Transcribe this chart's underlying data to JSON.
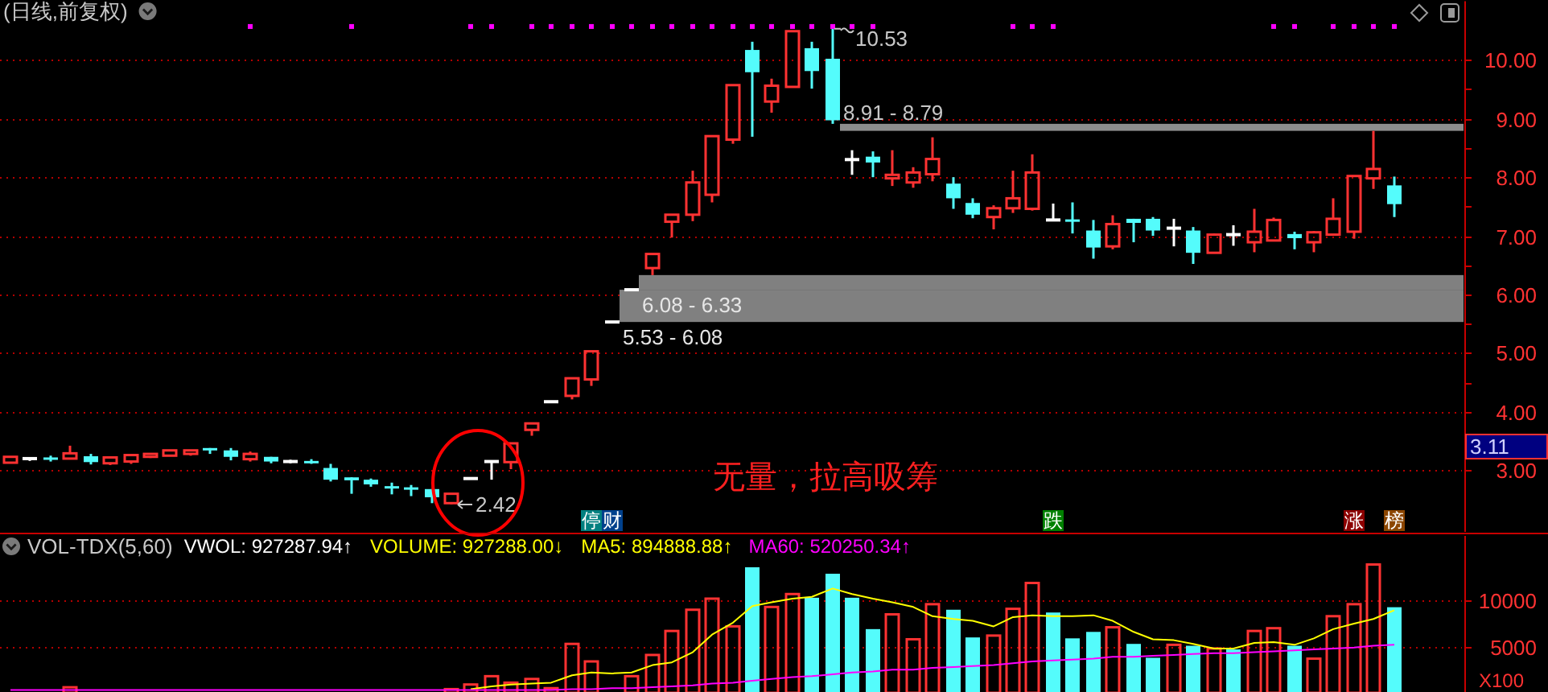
{
  "chart_data": [
    {
      "type": "candlestick",
      "title": "(日线,前复权)",
      "tick_labels": "y",
      "grid": "y",
      "marker": "square",
      "categories": [
        null,
        null,
        null,
        null,
        null,
        null,
        null,
        null,
        null,
        null,
        null,
        null,
        null,
        null,
        null,
        null,
        null,
        null,
        null,
        null,
        null,
        null,
        null,
        null,
        null,
        null,
        null,
        null,
        null,
        null,
        null,
        null,
        null,
        null,
        null,
        null,
        null,
        null,
        null,
        null,
        null,
        null,
        null,
        null,
        null,
        null,
        null,
        null,
        null,
        null,
        null,
        null,
        null,
        null,
        null,
        null,
        null,
        null,
        null,
        null,
        null,
        null,
        null,
        null,
        null,
        null,
        null,
        null,
        null,
        null,
        null,
        null,
        null
      ],
      "ohlc": [
        [
          3.13,
          3.24,
          3.12,
          3.23
        ],
        [
          3.2,
          3.21,
          3.16,
          3.2
        ],
        [
          3.22,
          3.25,
          3.15,
          3.2
        ],
        [
          3.2,
          3.42,
          3.19,
          3.29
        ],
        [
          3.24,
          3.28,
          3.1,
          3.14
        ],
        [
          3.12,
          3.23,
          3.09,
          3.22
        ],
        [
          3.15,
          3.27,
          3.11,
          3.26
        ],
        [
          3.23,
          3.29,
          3.21,
          3.28
        ],
        [
          3.25,
          3.35,
          3.24,
          3.34
        ],
        [
          3.28,
          3.35,
          3.25,
          3.34
        ],
        [
          3.38,
          3.38,
          3.28,
          3.35
        ],
        [
          3.34,
          3.38,
          3.17,
          3.23
        ],
        [
          3.19,
          3.32,
          3.15,
          3.28
        ],
        [
          3.23,
          3.23,
          3.12,
          3.15
        ],
        [
          3.15,
          3.18,
          3.12,
          3.15
        ],
        [
          3.16,
          3.19,
          3.11,
          3.15
        ],
        [
          3.04,
          3.11,
          2.81,
          2.84
        ],
        [
          2.88,
          2.88,
          2.6,
          2.83
        ],
        [
          2.84,
          2.86,
          2.72,
          2.76
        ],
        [
          2.73,
          2.79,
          2.59,
          2.71
        ],
        [
          2.71,
          2.75,
          2.56,
          2.69
        ],
        [
          2.68,
          2.68,
          2.44,
          2.54
        ],
        [
          2.44,
          2.6,
          2.42,
          2.6
        ],
        [
          2.86,
          2.86,
          2.86,
          2.86
        ],
        [
          3.15,
          3.15,
          2.84,
          3.15
        ],
        [
          3.14,
          3.46,
          3.02,
          3.46
        ],
        [
          3.69,
          3.8,
          3.59,
          3.8
        ],
        [
          4.17,
          4.17,
          4.17,
          4.17
        ],
        [
          4.27,
          4.57,
          4.21,
          4.57
        ],
        [
          4.55,
          5.03,
          4.44,
          5.03
        ],
        [
          5.53,
          5.53,
          5.53,
          5.53
        ],
        [
          6.08,
          6.08,
          6.08,
          6.08
        ],
        [
          6.45,
          6.69,
          6.33,
          6.69
        ],
        [
          7.24,
          7.36,
          6.97,
          7.36
        ],
        [
          7.36,
          8.11,
          7.25,
          7.91
        ],
        [
          7.7,
          8.7,
          7.57,
          8.7
        ],
        [
          8.64,
          9.57,
          8.57,
          9.57
        ],
        [
          10.17,
          10.31,
          8.69,
          9.79
        ],
        [
          9.29,
          9.68,
          9.1,
          9.56
        ],
        [
          9.54,
          10.49,
          9.54,
          10.49
        ],
        [
          10.2,
          10.31,
          9.51,
          9.81
        ],
        [
          10.02,
          10.53,
          8.91,
          8.97
        ],
        [
          8.3,
          8.46,
          8.04,
          8.3
        ],
        [
          8.35,
          8.44,
          8.0,
          8.25
        ],
        [
          7.98,
          8.46,
          7.85,
          8.04
        ],
        [
          7.91,
          8.17,
          7.82,
          8.08
        ],
        [
          8.05,
          8.68,
          7.93,
          8.31
        ],
        [
          7.89,
          8.0,
          7.46,
          7.64
        ],
        [
          7.56,
          7.64,
          7.3,
          7.36
        ],
        [
          7.32,
          7.52,
          7.11,
          7.47
        ],
        [
          7.47,
          8.11,
          7.39,
          7.64
        ],
        [
          7.46,
          8.39,
          7.43,
          8.08
        ],
        [
          7.27,
          7.55,
          7.27,
          7.27
        ],
        [
          7.28,
          7.57,
          7.04,
          7.26
        ],
        [
          7.09,
          7.27,
          6.61,
          6.8
        ],
        [
          6.82,
          7.35,
          6.77,
          7.2
        ],
        [
          7.29,
          7.29,
          6.89,
          7.22
        ],
        [
          7.29,
          7.32,
          7.0,
          7.09
        ],
        [
          7.13,
          7.29,
          6.82,
          7.13
        ],
        [
          7.09,
          7.15,
          6.52,
          6.71
        ],
        [
          6.71,
          7.04,
          6.7,
          7.02
        ],
        [
          7.02,
          7.18,
          6.83,
          7.02
        ],
        [
          6.89,
          7.46,
          6.72,
          7.07
        ],
        [
          6.92,
          7.31,
          6.92,
          7.27
        ],
        [
          7.03,
          7.07,
          6.77,
          6.96
        ],
        [
          6.89,
          7.08,
          6.72,
          7.06
        ],
        [
          7.02,
          7.64,
          7.0,
          7.29
        ],
        [
          7.07,
          8.03,
          6.95,
          8.02
        ],
        [
          7.98,
          8.79,
          7.8,
          8.14
        ],
        [
          7.86,
          8.01,
          7.32,
          7.54
        ],
        null,
        null,
        null
      ],
      "colors": [
        "#ff3232",
        "#ffffff",
        "#54fcfc",
        "#ff3232",
        "#54fcfc",
        "#ff3232",
        "#ff3232",
        "#ff3232",
        "#ff3232",
        "#ff3232",
        "#54fcfc",
        "#54fcfc",
        "#ff3232",
        "#54fcfc",
        "#ffffff",
        "#54fcfc",
        "#54fcfc",
        "#54fcfc",
        "#54fcfc",
        "#54fcfc",
        "#54fcfc",
        "#54fcfc",
        "#ff3232",
        "#ffffff",
        "#ffffff",
        "#ff3232",
        "#ff3232",
        "#ffffff",
        "#ff3232",
        "#ff3232",
        "#ffffff",
        "#ffffff",
        "#ff3232",
        "#ff3232",
        "#ff3232",
        "#ff3232",
        "#ff3232",
        "#54fcfc",
        "#ff3232",
        "#ff3232",
        "#54fcfc",
        "#54fcfc",
        "#ffffff",
        "#54fcfc",
        "#ff3232",
        "#ff3232",
        "#ff3232",
        "#54fcfc",
        "#54fcfc",
        "#ff3232",
        "#ff3232",
        "#ff3232",
        "#ffffff",
        "#54fcfc",
        "#54fcfc",
        "#ff3232",
        "#54fcfc",
        "#54fcfc",
        "#ffffff",
        "#54fcfc",
        "#ff3232",
        "#ffffff",
        "#ff3232",
        "#ff3232",
        "#54fcfc",
        "#ff3232",
        "#ff3232",
        "#ff3232",
        "#ff3232",
        "#54fcfc",
        null,
        null,
        null
      ],
      "series": [
        {
          "type": "scatter",
          "color": "#ff00ff",
          "values": [
            null,
            null,
            null,
            null,
            null,
            null,
            null,
            null,
            null,
            null,
            null,
            null,
            10.57,
            null,
            null,
            null,
            null,
            10.57,
            null,
            null,
            null,
            null,
            null,
            10.57,
            10.57,
            null,
            10.57,
            10.57,
            10.57,
            10.57,
            10.57,
            10.57,
            10.57,
            10.57,
            10.57,
            10.57,
            10.57,
            10.57,
            10.57,
            10.57,
            10.57,
            10.57,
            10.57,
            10.57,
            null,
            null,
            null,
            null,
            null,
            null,
            10.57,
            10.57,
            10.57,
            null,
            null,
            null,
            null,
            null,
            null,
            null,
            null,
            null,
            null,
            10.57,
            10.57,
            null,
            10.57,
            10.57,
            10.57,
            10.57,
            null,
            null,
            null
          ]
        }
      ],
      "ylim": [
        1.95,
        11.0
      ],
      "yticks": [
        {
          "value": 3,
          "label": "3.00"
        },
        {
          "value": 3.5,
          "label": null
        },
        {
          "value": 4,
          "label": "4.00"
        },
        {
          "value": 4.5,
          "label": null
        },
        {
          "value": 5,
          "label": "5.00"
        },
        {
          "value": 5.5,
          "label": null
        },
        {
          "value": 6,
          "label": "6.00"
        },
        {
          "value": 6.5,
          "label": null
        },
        {
          "value": 7,
          "label": "7.00"
        },
        {
          "value": 7.5,
          "label": null
        },
        {
          "value": 8,
          "label": "8.00"
        },
        {
          "value": 8.5,
          "label": null
        },
        {
          "value": 9,
          "label": "9.00"
        },
        {
          "value": 9.5,
          "label": null
        },
        {
          "value": 10,
          "label": "10.00"
        }
      ],
      "bands": [
        {
          "axis": "y",
          "from": 8.79,
          "to": 8.91,
          "label": "8.91 - 8.79",
          "color": "#8c8c8c"
        },
        {
          "axis": "y",
          "from": 6.08,
          "to": 6.33,
          "label": "6.08 - 6.33",
          "color": "#808080"
        },
        {
          "axis": "y",
          "from": 5.53,
          "to": 6.08,
          "label": "5.53 - 6.08",
          "color": "#808080"
        }
      ],
      "annotations": [
        "10.53",
        "2.42",
        "无量，拉高吸筹",
        "停",
        "财",
        "跌",
        "涨",
        "榜",
        "3.11"
      ]
    },
    {
      "type": "bar",
      "title": "VOL-TDX(5,60)",
      "tick_labels": "y",
      "grid": "y",
      "legend": "top left",
      "ylabel": "X100",
      "categories": [
        null,
        null,
        null,
        null,
        null,
        null,
        null,
        null,
        null,
        null,
        null,
        null,
        null,
        null,
        null,
        null,
        null,
        null,
        null,
        null,
        null,
        null,
        null,
        null,
        null,
        null,
        null,
        null,
        null,
        null,
        null,
        null,
        null,
        null,
        null,
        null,
        null,
        null,
        null,
        null,
        null,
        null,
        null,
        null,
        null,
        null,
        null,
        null,
        null,
        null,
        null,
        null,
        null,
        null,
        null,
        null,
        null,
        null,
        null,
        null,
        null,
        null,
        null,
        null,
        null,
        null,
        null,
        null,
        null,
        null,
        null,
        null,
        null
      ],
      "ylim": [
        0,
        17000
      ],
      "yticks": [
        5000,
        10000
      ],
      "annotations": [
        "VWOL: 927287.94↑",
        "VOLUME: 927288.00↓"
      ],
      "series": [
        {
          "type": "bar",
          "color": "#ff3232",
          "colors": [
            null,
            null,
            null,
            "#ff3232",
            null,
            null,
            null,
            null,
            null,
            null,
            null,
            null,
            null,
            null,
            null,
            null,
            null,
            null,
            null,
            null,
            null,
            null,
            "#ff3232",
            "#ff3232",
            "#ff3232",
            "#ff3232",
            "#ff3232",
            "#ff3232",
            "#ff3232",
            "#ff3232",
            null,
            "#ff3232",
            "#ff3232",
            "#ff3232",
            "#ff3232",
            "#ff3232",
            "#ff3232",
            "#54fcfc",
            "#ff3232",
            "#ff3232",
            "#54fcfc",
            "#54fcfc",
            "#54fcfc",
            "#54fcfc",
            "#ff3232",
            "#ff3232",
            "#ff3232",
            "#54fcfc",
            "#54fcfc",
            "#ff3232",
            "#ff3232",
            "#ff3232",
            "#54fcfc",
            "#54fcfc",
            "#54fcfc",
            "#ff3232",
            "#54fcfc",
            "#54fcfc",
            "#ff3232",
            "#54fcfc",
            "#ff3232",
            "#54fcfc",
            "#ff3232",
            "#ff3232",
            "#54fcfc",
            "#ff3232",
            "#ff3232",
            "#ff3232",
            "#ff3232",
            "#54fcfc",
            null,
            null,
            null
          ],
          "values": [
            null,
            null,
            null,
            600,
            null,
            null,
            null,
            null,
            null,
            null,
            null,
            null,
            null,
            null,
            null,
            null,
            null,
            null,
            null,
            null,
            null,
            null,
            400,
            900,
            1800,
            1100,
            1500,
            500,
            5300,
            3400,
            null,
            1800,
            4100,
            6700,
            9000,
            10200,
            7200,
            13600,
            9300,
            10700,
            10300,
            12900,
            10300,
            6900,
            8500,
            5800,
            9600,
            9000,
            6000,
            6200,
            9100,
            11900,
            8700,
            5900,
            6600,
            7100,
            5300,
            3800,
            5200,
            5100,
            4800,
            4700,
            6700,
            7000,
            5100,
            3700,
            8300,
            9600,
            13900,
            9272.88,
            null,
            null,
            null
          ]
        },
        {
          "type": "line",
          "name": "MA5: 894888.88↑",
          "color": "#ffff00",
          "values": [
            null,
            null,
            null,
            null,
            null,
            null,
            null,
            null,
            null,
            null,
            null,
            null,
            null,
            null,
            null,
            null,
            null,
            null,
            null,
            null,
            null,
            null,
            null,
            400,
            700,
            900,
            1000,
            1100,
            1900,
            2200,
            2100,
            2200,
            3000,
            3300,
            4400,
            6300,
            7600,
            9400,
            9800,
            10200,
            10400,
            11300,
            10700,
            10200,
            9800,
            9300,
            8300,
            8000,
            7800,
            7200,
            8200,
            8400,
            8300,
            8300,
            8400,
            7800,
            6600,
            5800,
            5700,
            5300,
            4800,
            4800,
            5400,
            5500,
            5200,
            5900,
            6900,
            7500,
            8000,
            8948.89,
            null,
            null,
            null
          ]
        },
        {
          "type": "line",
          "name": "MA60: 520250.34↑",
          "color": "#ff00ff",
          "values": [
            300,
            300,
            300,
            300,
            300,
            300,
            300,
            300,
            300,
            300,
            300,
            300,
            300,
            300,
            300,
            300,
            300,
            300,
            300,
            300,
            300,
            300,
            300,
            300,
            300,
            300,
            300,
            300,
            400,
            400,
            500,
            500,
            600,
            700,
            800,
            1000,
            1100,
            1300,
            1500,
            1700,
            1800,
            2000,
            2200,
            2300,
            2500,
            2500,
            2700,
            2800,
            2900,
            3000,
            3200,
            3400,
            3500,
            3600,
            3700,
            3900,
            3900,
            4000,
            4100,
            4200,
            4300,
            4300,
            4400,
            4500,
            4600,
            4700,
            4800,
            4900,
            5100,
            5202.5,
            null,
            null,
            null
          ]
        }
      ]
    }
  ]
}
